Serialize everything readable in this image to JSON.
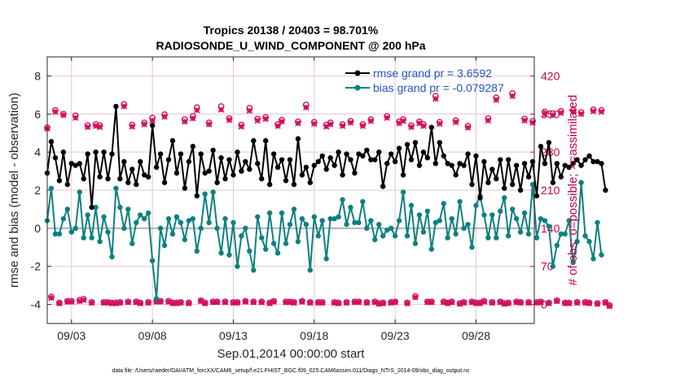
{
  "chart_data": {
    "type": "line",
    "title_line1": "Tropics 20138 / 20403 = 98.701%",
    "title_line2": "RADIOSONDE_U_WIND_COMPONENT @ 200 hPa",
    "xlabel": "Sep.01,2014 00:00:00 start",
    "ylabel_left": "rmse and bias (model - observation)",
    "ylabel_right": "# of obs: o=possible; ×=assimilated",
    "footnote": "data file: /Users/raeder/DAI/ATM_forcXX/CAM6_setup/f.e21.FHIST_BGC.f09_025.CAM6assim.011/Diags_NTrS_2014-09/obs_diag_output.nc",
    "xlim": [
      1.5,
      31.6
    ],
    "ylim_left": [
      -5,
      9
    ],
    "ylim_right": [
      -35,
      455
    ],
    "x_ticks": [
      3,
      8,
      13,
      18,
      23,
      28
    ],
    "x_tick_labels": [
      "09/03",
      "09/08",
      "09/13",
      "09/18",
      "09/23",
      "09/28"
    ],
    "y_ticks_left": [
      -4,
      -2,
      0,
      2,
      4,
      6,
      8
    ],
    "y_tick_labels_left": [
      "-4",
      "-2",
      "0",
      "2",
      "4",
      "6",
      "8"
    ],
    "y_ticks_right": [
      0,
      70,
      140,
      210,
      280,
      350,
      420
    ],
    "y_tick_labels_right": [
      "0",
      "70",
      "140",
      "210",
      "280",
      "350",
      "420"
    ],
    "legend": [
      {
        "label": "rmse grand pr = 3.6592",
        "color": "#000000"
      },
      {
        "label": "bias grand pr = -0.079287",
        "color": "#0d8080"
      }
    ],
    "colors": {
      "rmse": "#000000",
      "bias": "#0d8080",
      "obs": "#d40f5b",
      "zero_line": "#b4b4b4",
      "grid": "#e6c6cf"
    },
    "series": [
      {
        "name": "rmse",
        "values": [
          2.9,
          4.55,
          3.7,
          2.5,
          4.0,
          2.3,
          3.4,
          3.3,
          3.4,
          2.6,
          3.9,
          1.1,
          4.0,
          2.7,
          4.0,
          2.6,
          3.9,
          6.4,
          2.6,
          3.5,
          2.4,
          3.1,
          2.3,
          3.5,
          2.8,
          2.7,
          5.4,
          3.2,
          3.9,
          2.4,
          3.6,
          4.6,
          2.9,
          3.9,
          2.1,
          3.5,
          4.3,
          1.7,
          3.9,
          2.9,
          3.0,
          4.1,
          2.4,
          3.7,
          2.6,
          3.6,
          2.8,
          4.0,
          3.0,
          3.5,
          3.1,
          4.6,
          3.4,
          2.6,
          4.6,
          2.3,
          3.9,
          3.2,
          3.6,
          2.5,
          3.6,
          2.3,
          4.7,
          2.8,
          3.2,
          2.4,
          3.3,
          3.5,
          3.8,
          3.1,
          3.7,
          3.3,
          4.0,
          2.8,
          3.9,
          3.6,
          2.9,
          3.9,
          3.8,
          4.1,
          3.6,
          3.6,
          4.0,
          2.2,
          3.4,
          3.9,
          3.5,
          4.2,
          2.8,
          4.4,
          3.6,
          4.5,
          3.3,
          4.0,
          3.7,
          5.3,
          3.4,
          4.5,
          3.8,
          3.4,
          3.3,
          2.8,
          3.4,
          3.3,
          3.9,
          2.3,
          3.8,
          1.6,
          3.5,
          2.4,
          3.1,
          2.6,
          3.6,
          2.1,
          3.6,
          2.3,
          3.3,
          2.0,
          3.4,
          2.7,
          3.5,
          1.7,
          4.3,
          3.4,
          4.5,
          2.4,
          3.4,
          2.7,
          3.3,
          3.2,
          3.4,
          3.6,
          3.3,
          3.6,
          3.8,
          3.5,
          3.5,
          3.4,
          2.0
        ],
        "start_day": 1.5,
        "step_days": 0.25
      },
      {
        "name": "bias",
        "values": [
          0.4,
          2.1,
          -0.3,
          -0.3,
          0.5,
          1.0,
          -0.2,
          0.0,
          1.9,
          -0.5,
          0.7,
          -0.5,
          1.1,
          -0.7,
          0.6,
          -0.2,
          -1.5,
          2.1,
          1.1,
          0.0,
          1.0,
          -0.8,
          0.3,
          0.7,
          0.5,
          0.8,
          -1.7,
          -3.7,
          0.0,
          -0.9,
          0.5,
          -0.3,
          0.6,
          0.3,
          -0.6,
          0.4,
          0.5,
          -1.2,
          0.0,
          1.8,
          0.3,
          1.9,
          0.0,
          -1.3,
          0.5,
          -1.4,
          0.3,
          -2.0,
          -0.4,
          0.0,
          -1.2,
          -2.2,
          0.6,
          -0.5,
          -1.1,
          0.8,
          -0.8,
          -1.3,
          0.8,
          -0.8,
          0.2,
          1.0,
          -0.7,
          0.5,
          0.2,
          -2.2,
          0.6,
          -0.4,
          0.4,
          -1.6,
          0.5,
          0.5,
          0.6,
          1.5,
          0.2,
          1.1,
          0.3,
          0.3,
          1.4,
          0.0,
          0.4,
          -0.6,
          0.2,
          -0.4,
          -0.1,
          0.0,
          -0.4,
          0.4,
          1.9,
          -0.4,
          1.2,
          -0.8,
          0.7,
          -0.2,
          0.9,
          -1.1,
          0.3,
          0.4,
          1.3,
          -0.5,
          0.5,
          -0.3,
          1.4,
          0.0,
          0.2,
          -1.0,
          1.2,
          1.7,
          0.7,
          -0.5,
          0.7,
          -0.5,
          0.9,
          1.6,
          -0.4,
          1.0,
          0.5,
          -0.2,
          0.8,
          -0.3,
          2.3,
          -0.5,
          0.5,
          0.4,
          0.1,
          -2.0,
          -0.9,
          -0.3,
          -0.3,
          0.4,
          -1.8,
          -0.7,
          2.4,
          -0.4,
          -0.7,
          -1.6,
          0.3,
          -1.4
        ],
        "start_day": 1.5,
        "step_days": 0.25
      },
      {
        "name": "obs_possible",
        "values": [
          325,
          14,
          357,
          3,
          350,
          6,
          6,
          347,
          8,
          10,
          329,
          4,
          331,
          329,
          4,
          4,
          3,
          3,
          4,
          368,
          5,
          330,
          5,
          3,
          334,
          4,
          343,
          6,
          6,
          349,
          6,
          3,
          3,
          4,
          340,
          3,
          346,
          362,
          7,
          3,
          334,
          5,
          5,
          364,
          5,
          342,
          4,
          4,
          330,
          6,
          361,
          5,
          341,
          5,
          344,
          3,
          6,
          331,
          339,
          5,
          5,
          4,
          336,
          6,
          367,
          4,
          335,
          4,
          4,
          330,
          334,
          4,
          3,
          331,
          4,
          337,
          5,
          5,
          331,
          4,
          340,
          5,
          2,
          3,
          346,
          4,
          5,
          336,
          340,
          3,
          329,
          15,
          336,
          331,
          5,
          5,
          383,
          335,
          5,
          3,
          5,
          338,
          2,
          4,
          328,
          5,
          3,
          3,
          6,
          342,
          4,
          380,
          5,
          2,
          3,
          388,
          5,
          4,
          341,
          4,
          337,
          4,
          5,
          354,
          3,
          351,
          7,
          355,
          3,
          3,
          357,
          4,
          353,
          4,
          3,
          358,
          2,
          357,
          4,
          -2
        ],
        "start_day": 1.5,
        "step_days": 0.25
      },
      {
        "name": "obs_assimilated",
        "values": [
          323,
          12,
          354,
          2,
          348,
          5,
          5,
          343,
          6,
          8,
          326,
          3,
          328,
          326,
          3,
          3,
          2,
          2,
          3,
          364,
          4,
          327,
          4,
          2,
          331,
          3,
          338,
          5,
          5,
          345,
          5,
          2,
          2,
          3,
          336,
          2,
          342,
          357,
          6,
          2,
          331,
          4,
          4,
          358,
          4,
          339,
          3,
          3,
          327,
          5,
          356,
          4,
          338,
          4,
          341,
          2,
          5,
          328,
          336,
          4,
          4,
          3,
          333,
          5,
          362,
          3,
          332,
          3,
          3,
          327,
          331,
          3,
          2,
          328,
          3,
          334,
          4,
          4,
          328,
          3,
          337,
          4,
          1,
          2,
          343,
          3,
          4,
          333,
          337,
          2,
          326,
          13,
          333,
          328,
          4,
          4,
          378,
          332,
          4,
          2,
          4,
          335,
          1,
          3,
          325,
          4,
          2,
          2,
          5,
          338,
          3,
          376,
          4,
          1,
          2,
          383,
          4,
          3,
          338,
          3,
          334,
          3,
          4,
          350,
          2,
          348,
          6,
          352,
          2,
          2,
          354,
          3,
          350,
          3,
          2,
          355,
          1,
          354,
          3,
          -3
        ],
        "start_day": 1.5,
        "step_days": 0.25
      }
    ]
  }
}
